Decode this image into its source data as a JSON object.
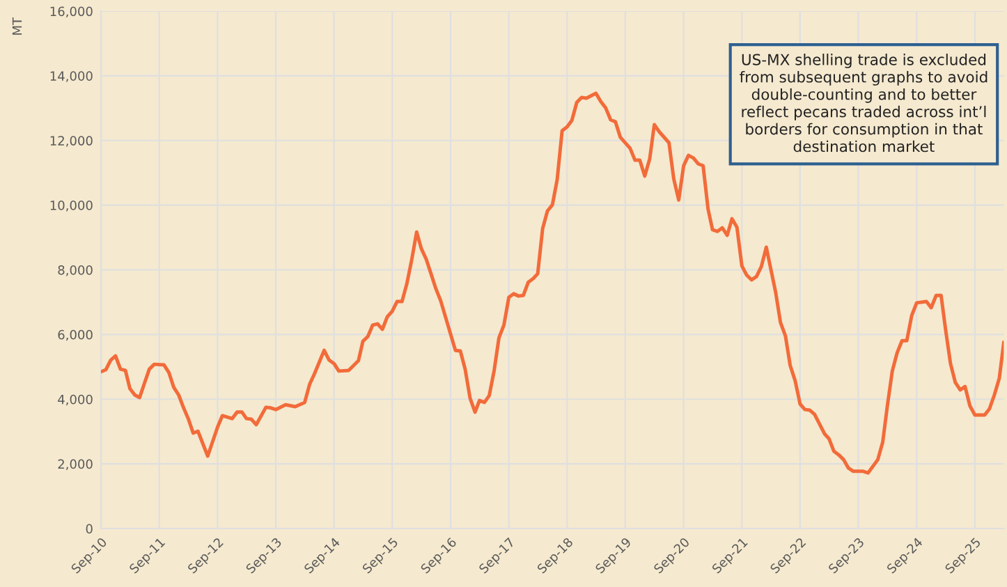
{
  "chart_data": {
    "type": "line",
    "ylabel": "MT",
    "x": [
      "2010-09",
      "2010-10",
      "2010-11",
      "2010-12",
      "2011-01",
      "2011-02",
      "2011-03",
      "2011-04",
      "2011-05",
      "2011-06",
      "2011-07",
      "2011-08",
      "2011-10",
      "2011-11",
      "2011-12",
      "2012-01",
      "2012-02",
      "2012-03",
      "2012-04",
      "2012-05",
      "2012-07",
      "2012-09",
      "2012-10",
      "2012-12",
      "2013-01",
      "2013-02",
      "2013-03",
      "2013-04",
      "2013-05",
      "2013-07",
      "2013-08",
      "2013-09",
      "2013-11",
      "2014-01",
      "2014-03",
      "2014-04",
      "2014-05",
      "2014-07",
      "2014-08",
      "2014-09",
      "2014-10",
      "2014-12",
      "2015-02",
      "2015-03",
      "2015-04",
      "2015-05",
      "2015-06",
      "2015-07",
      "2015-08",
      "2015-09",
      "2015-10",
      "2015-11",
      "2015-12",
      "2016-01",
      "2016-02",
      "2016-03",
      "2016-04",
      "2016-05",
      "2016-06",
      "2016-07",
      "2016-09",
      "2016-10",
      "2016-11",
      "2016-12",
      "2017-01",
      "2017-02",
      "2017-03",
      "2017-04",
      "2017-05",
      "2017-06",
      "2017-07",
      "2017-08",
      "2017-09",
      "2017-10",
      "2017-11",
      "2017-12",
      "2018-01",
      "2018-02",
      "2018-03",
      "2018-04",
      "2018-05",
      "2018-06",
      "2018-07",
      "2018-08",
      "2018-09",
      "2018-10",
      "2018-11",
      "2018-12",
      "2019-01",
      "2019-02",
      "2019-03",
      "2019-04",
      "2019-05",
      "2019-06",
      "2019-07",
      "2019-08",
      "2019-10",
      "2019-11",
      "2019-12",
      "2020-01",
      "2020-02",
      "2020-03",
      "2020-04",
      "2020-06",
      "2020-07",
      "2020-08",
      "2020-09",
      "2020-10",
      "2020-11",
      "2020-12",
      "2021-01",
      "2021-02",
      "2021-03",
      "2021-04",
      "2021-05",
      "2021-06",
      "2021-07",
      "2021-08",
      "2021-09",
      "2021-10",
      "2021-11",
      "2021-12",
      "2022-01",
      "2022-02",
      "2022-04",
      "2022-05",
      "2022-06",
      "2022-07",
      "2022-08",
      "2022-09",
      "2022-10",
      "2022-11",
      "2022-12",
      "2023-02",
      "2023-03",
      "2023-04",
      "2023-05",
      "2023-06",
      "2023-07",
      "2023-08",
      "2023-10",
      "2023-11",
      "2024-01",
      "2024-02",
      "2024-03",
      "2024-04",
      "2024-05",
      "2024-06",
      "2024-07",
      "2024-08",
      "2024-09",
      "2024-10",
      "2024-11",
      "2024-12",
      "2025-01",
      "2025-02",
      "2025-03",
      "2025-04",
      "2025-05",
      "2025-06",
      "2025-07",
      "2025-08",
      "2025-09",
      "2025-11",
      "2025-12",
      "2026-01",
      "2026-02",
      "2026-03"
    ],
    "series": [
      {
        "color": "#f26b3a",
        "values": [
          4850,
          4910,
          5210,
          5340,
          4930,
          4890,
          4330,
          4130,
          4050,
          4500,
          4930,
          5080,
          5060,
          4820,
          4370,
          4130,
          3730,
          3400,
          2950,
          3010,
          2240,
          3140,
          3490,
          3400,
          3600,
          3600,
          3400,
          3380,
          3210,
          3750,
          3730,
          3680,
          3830,
          3770,
          3900,
          4460,
          4780,
          5510,
          5210,
          5100,
          4870,
          4890,
          5190,
          5790,
          5940,
          6290,
          6330,
          6160,
          6550,
          6720,
          7020,
          7020,
          7560,
          8310,
          9170,
          8660,
          8330,
          7880,
          7410,
          7040,
          6010,
          5510,
          5490,
          4930,
          4030,
          3600,
          3960,
          3900,
          4110,
          4890,
          5900,
          6290,
          7150,
          7260,
          7190,
          7210,
          7620,
          7730,
          7880,
          9280,
          9820,
          10010,
          10790,
          12300,
          12420,
          12620,
          13180,
          13330,
          13310,
          13390,
          13460,
          13200,
          13010,
          12640,
          12580,
          12100,
          11760,
          11390,
          11390,
          10900,
          11430,
          12490,
          12270,
          11930,
          10810,
          10160,
          11220,
          11540,
          11460,
          11280,
          11220,
          9880,
          9240,
          9190,
          9300,
          9070,
          9580,
          9320,
          8120,
          7840,
          7690,
          7790,
          8100,
          8700,
          7300,
          6370,
          5960,
          5040,
          4570,
          3850,
          3680,
          3660,
          3530,
          2930,
          2780,
          2390,
          2280,
          2130,
          1870,
          1770,
          1770,
          1720,
          2130,
          2670,
          3790,
          4870,
          5430,
          5810,
          5810,
          6590,
          6980,
          7000,
          7020,
          6830,
          7210,
          7210,
          6160,
          5100,
          4520,
          4290,
          4390,
          3790,
          3510,
          3510,
          3700,
          4130,
          4650,
          5750
        ]
      }
    ],
    "xlim": [
      "2010-09",
      "2026-03"
    ],
    "xticks": [
      {
        "value": "2010-09",
        "label": "Sep-10"
      },
      {
        "value": "2011-09",
        "label": "Sep-11"
      },
      {
        "value": "2012-09",
        "label": "Sep-12"
      },
      {
        "value": "2013-09",
        "label": "Sep-13"
      },
      {
        "value": "2014-09",
        "label": "Sep-14"
      },
      {
        "value": "2015-09",
        "label": "Sep-15"
      },
      {
        "value": "2016-09",
        "label": "Sep-16"
      },
      {
        "value": "2017-09",
        "label": "Sep-17"
      },
      {
        "value": "2018-09",
        "label": "Sep-18"
      },
      {
        "value": "2019-09",
        "label": "Sep-19"
      },
      {
        "value": "2020-09",
        "label": "Sep-20"
      },
      {
        "value": "2021-09",
        "label": "Sep-21"
      },
      {
        "value": "2022-09",
        "label": "Sep-22"
      },
      {
        "value": "2023-09",
        "label": "Sep-23"
      },
      {
        "value": "2024-09",
        "label": "Sep-24"
      },
      {
        "value": "2025-09",
        "label": "Sep-25"
      }
    ],
    "ylim": [
      0,
      16000
    ],
    "yticks": [
      {
        "value": 0,
        "label": "0"
      },
      {
        "value": 2000,
        "label": "2,000"
      },
      {
        "value": 4000,
        "label": "4,000"
      },
      {
        "value": 6000,
        "label": "6,000"
      },
      {
        "value": 8000,
        "label": "8,000"
      },
      {
        "value": 10000,
        "label": "10,000"
      },
      {
        "value": 12000,
        "label": "12,000"
      },
      {
        "value": 14000,
        "label": "14,000"
      },
      {
        "value": 16000,
        "label": "16,000"
      }
    ],
    "grid": true,
    "line_style": "solid",
    "annotations": [
      "US-MX shelling trade is excluded\nfrom subsequent graphs to avoid\ndouble-counting and to better\nreflect pecans traded across int’l\nborders for consumption in that\ndestination market"
    ]
  }
}
